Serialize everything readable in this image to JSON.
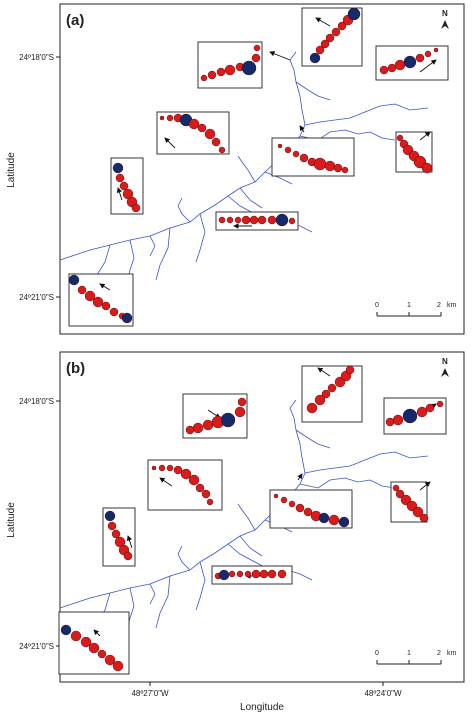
{
  "figure": {
    "y_axis_label": "Latitude",
    "x_axis_label": "Longitude",
    "lat_ticks": [
      "24º18'0\"S",
      "24º21'0\"S"
    ],
    "lon_ticks": [
      "48º27'0\"W",
      "48º24'0\"W"
    ]
  },
  "panels": [
    {
      "id": "a",
      "label": "(a)",
      "north": "N",
      "scale_labels": [
        "0",
        "1",
        "2",
        "km"
      ]
    },
    {
      "id": "b",
      "label": "(b)",
      "north": "N",
      "scale_labels": [
        "0",
        "1",
        "2",
        "km"
      ]
    }
  ],
  "colors": {
    "river": "#3b54c9",
    "red_circle": "#d91b1b",
    "blue_circle": "#142a6b",
    "frame": "#222222"
  },
  "legend_icons": [
    "north-arrow-icon",
    "scale-bar"
  ]
}
